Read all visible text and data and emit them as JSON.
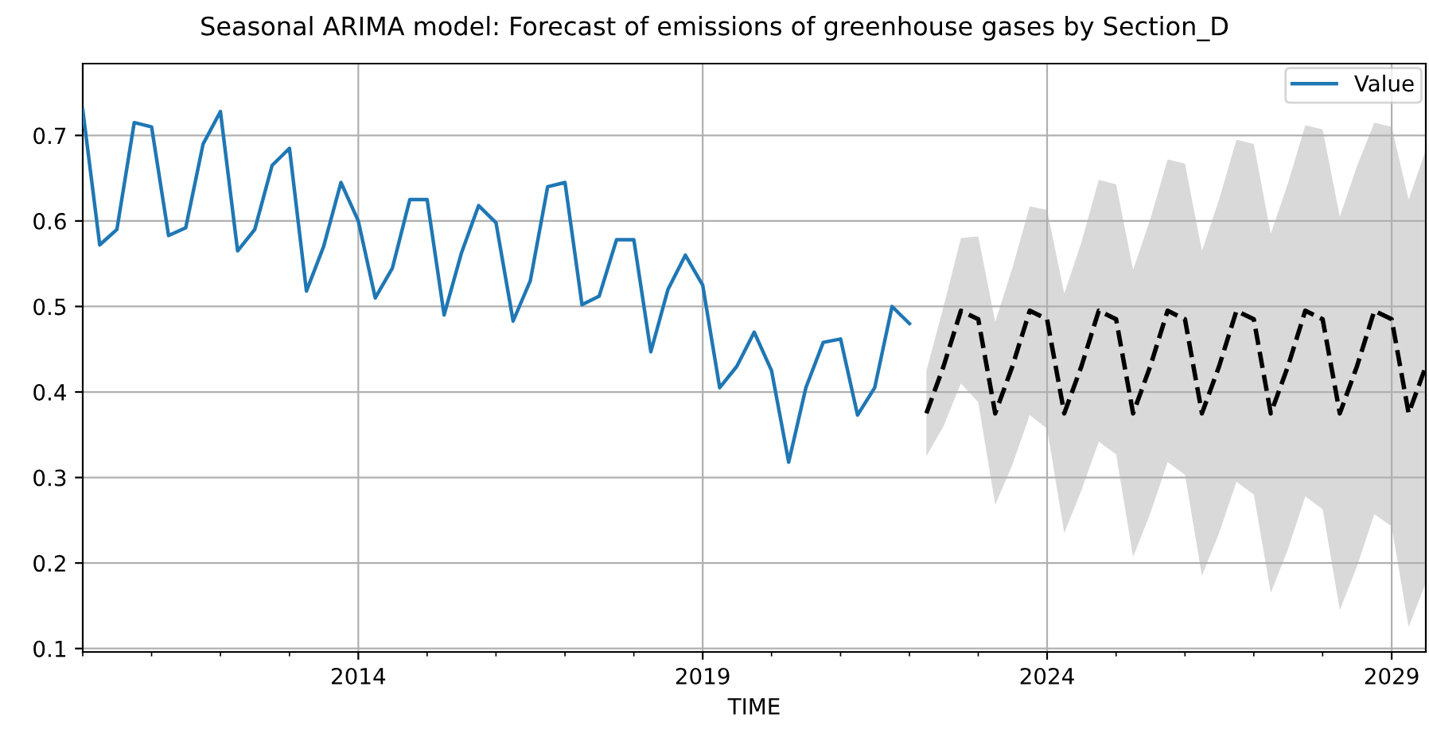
{
  "chart_data": {
    "type": "line",
    "title": "Seasonal ARIMA model: Forecast of emissions of greenhouse gases by Section_D",
    "xlabel": "TIME",
    "xlim": [
      "2010-01",
      "2029-07"
    ],
    "ylim": [
      0.096,
      0.784
    ],
    "xticks": [
      {
        "value": "2014-01",
        "label": "2014"
      },
      {
        "value": "2019-01",
        "label": "2019"
      },
      {
        "value": "2024-01",
        "label": "2024"
      },
      {
        "value": "2029-01",
        "label": "2029"
      }
    ],
    "yticks": [
      0.1,
      0.2,
      0.3,
      0.4,
      0.5,
      0.6,
      0.7
    ],
    "grid": true,
    "legend": "top right",
    "series": [
      {
        "name": "Value",
        "color": "#1f77b4",
        "line_style": "solid",
        "x": [
          "2010-01",
          "2010-04",
          "2010-07",
          "2010-10",
          "2011-01",
          "2011-04",
          "2011-07",
          "2011-10",
          "2012-01",
          "2012-04",
          "2012-07",
          "2012-10",
          "2013-01",
          "2013-04",
          "2013-07",
          "2013-10",
          "2014-01",
          "2014-04",
          "2014-07",
          "2014-10",
          "2015-01",
          "2015-04",
          "2015-07",
          "2015-10",
          "2016-01",
          "2016-04",
          "2016-07",
          "2016-10",
          "2017-01",
          "2017-04",
          "2017-07",
          "2017-10",
          "2018-01",
          "2018-04",
          "2018-07",
          "2018-10",
          "2019-01",
          "2019-04",
          "2019-07",
          "2019-10",
          "2020-01",
          "2020-04",
          "2020-07",
          "2020-10",
          "2021-01",
          "2021-04",
          "2021-07",
          "2021-10",
          "2022-01"
        ],
        "values": [
          0.73,
          0.572,
          0.59,
          0.715,
          0.71,
          0.583,
          0.592,
          0.69,
          0.728,
          0.565,
          0.59,
          0.665,
          0.685,
          0.518,
          0.57,
          0.645,
          0.6,
          0.51,
          0.545,
          0.625,
          0.625,
          0.49,
          0.562,
          0.618,
          0.598,
          0.483,
          0.53,
          0.64,
          0.645,
          0.502,
          0.512,
          0.578,
          0.578,
          0.447,
          0.52,
          0.56,
          0.525,
          0.405,
          0.43,
          0.47,
          0.425,
          0.318,
          0.405,
          0.458,
          0.462,
          0.373,
          0.405,
          0.5,
          0.48
        ]
      },
      {
        "color": "#000000",
        "line_style": "dashed",
        "x": [
          "2022-04",
          "2022-07",
          "2022-10",
          "2023-01",
          "2023-04",
          "2023-07",
          "2023-10",
          "2024-01",
          "2024-04",
          "2024-07",
          "2024-10",
          "2025-01",
          "2025-04",
          "2025-07",
          "2025-10",
          "2026-01",
          "2026-04",
          "2026-07",
          "2026-10",
          "2027-01",
          "2027-04",
          "2027-07",
          "2027-10",
          "2028-01",
          "2028-04",
          "2028-07",
          "2028-10",
          "2029-01",
          "2029-04",
          "2029-07"
        ],
        "values": [
          0.375,
          0.43,
          0.495,
          0.485,
          0.375,
          0.43,
          0.495,
          0.485,
          0.375,
          0.43,
          0.495,
          0.485,
          0.375,
          0.43,
          0.495,
          0.485,
          0.375,
          0.43,
          0.495,
          0.485,
          0.375,
          0.43,
          0.495,
          0.485,
          0.375,
          0.43,
          0.495,
          0.485,
          0.375,
          0.43
        ],
        "lower": [
          0.325,
          0.36,
          0.41,
          0.388,
          0.268,
          0.315,
          0.373,
          0.357,
          0.235,
          0.285,
          0.342,
          0.327,
          0.207,
          0.258,
          0.318,
          0.303,
          0.185,
          0.235,
          0.295,
          0.28,
          0.165,
          0.216,
          0.278,
          0.263,
          0.145,
          0.196,
          0.257,
          0.243,
          0.125,
          0.177
        ],
        "upper": [
          0.425,
          0.5,
          0.58,
          0.582,
          0.482,
          0.545,
          0.617,
          0.613,
          0.515,
          0.575,
          0.648,
          0.643,
          0.543,
          0.602,
          0.672,
          0.667,
          0.565,
          0.625,
          0.695,
          0.69,
          0.585,
          0.644,
          0.712,
          0.707,
          0.605,
          0.664,
          0.715,
          0.71,
          0.625,
          0.683
        ]
      }
    ]
  }
}
